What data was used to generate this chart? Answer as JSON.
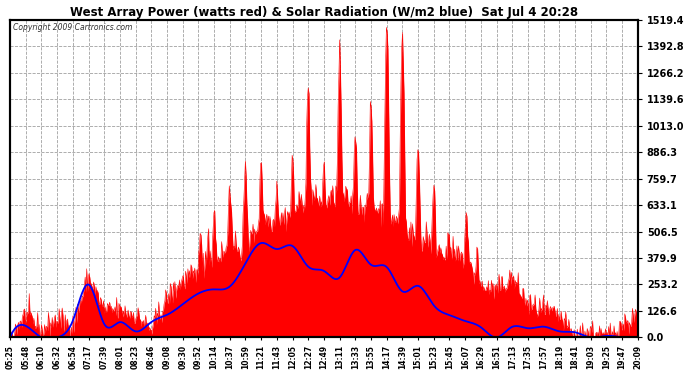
{
  "title": "West Array Power (watts red) & Solar Radiation (W/m2 blue)  Sat Jul 4 20:28",
  "copyright": "Copyright 2009 Cartronics.com",
  "ylabel_right_ticks": [
    0.0,
    126.6,
    253.2,
    379.9,
    506.5,
    633.1,
    759.7,
    886.3,
    1013.0,
    1139.6,
    1266.2,
    1392.8,
    1519.4
  ],
  "ymax": 1519.4,
  "ymin": 0.0,
  "bg_color": "#ffffff",
  "plot_bg_color": "#ffffff",
  "grid_color": "#888888",
  "fill_color": "#ff0000",
  "line_color": "#0000ff",
  "title_color": "#000000",
  "x_label_color": "#000000",
  "time_labels": [
    "05:25",
    "05:48",
    "06:10",
    "06:32",
    "06:54",
    "07:17",
    "07:39",
    "08:01",
    "08:23",
    "08:46",
    "09:08",
    "09:30",
    "09:52",
    "10:14",
    "10:37",
    "10:59",
    "11:21",
    "11:43",
    "12:05",
    "12:27",
    "12:49",
    "13:11",
    "13:33",
    "13:55",
    "14:17",
    "14:39",
    "15:01",
    "15:23",
    "15:45",
    "16:07",
    "16:29",
    "16:51",
    "17:13",
    "17:35",
    "17:57",
    "18:19",
    "18:41",
    "19:03",
    "19:25",
    "19:47",
    "20:09"
  ]
}
